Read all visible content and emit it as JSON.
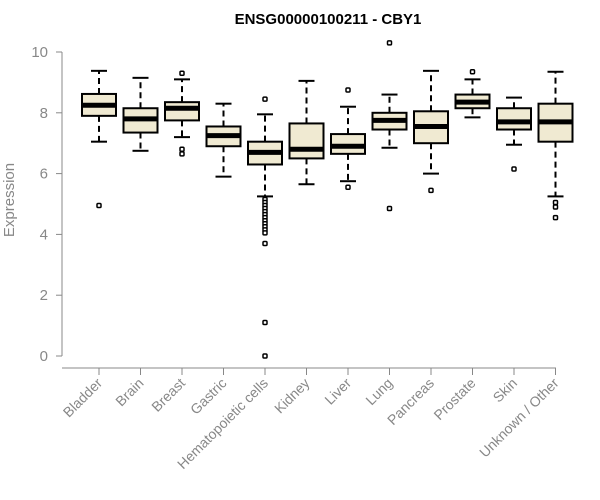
{
  "chart_data": {
    "type": "boxplot",
    "title": "ENSG00000100211 - CBY1",
    "xlabel": "",
    "ylabel": "Expression",
    "ylim": [
      0,
      10
    ],
    "yticks": [
      0,
      2,
      4,
      6,
      8,
      10
    ],
    "box_fill": "#f0ead2",
    "categories": [
      "Bladder",
      "Brain",
      "Breast",
      "Gastric",
      "Hematopoietic cells",
      "Kidney",
      "Liver",
      "Lung",
      "Pancreas",
      "Prostate",
      "Skin",
      "Unknown / Other"
    ],
    "boxes": [
      {
        "category": "Bladder",
        "whisker_low": 7.05,
        "q1": 7.9,
        "median": 8.25,
        "q3": 8.62,
        "whisker_high": 9.38,
        "outliers": [
          4.95
        ]
      },
      {
        "category": "Brain",
        "whisker_low": 6.75,
        "q1": 7.35,
        "median": 7.8,
        "q3": 8.15,
        "whisker_high": 9.15,
        "outliers": []
      },
      {
        "category": "Breast",
        "whisker_low": 7.2,
        "q1": 7.75,
        "median": 8.15,
        "q3": 8.35,
        "whisker_high": 9.1,
        "outliers": [
          9.3,
          6.8,
          6.65
        ]
      },
      {
        "category": "Gastric",
        "whisker_low": 5.9,
        "q1": 6.9,
        "median": 7.25,
        "q3": 7.55,
        "whisker_high": 8.3,
        "outliers": []
      },
      {
        "category": "Hematopoietic cells",
        "whisker_low": 5.25,
        "q1": 6.3,
        "median": 6.7,
        "q3": 7.05,
        "whisker_high": 7.95,
        "outliers": [
          8.45,
          5.15,
          5.05,
          4.95,
          4.85,
          4.75,
          4.65,
          4.55,
          4.45,
          4.35,
          4.25,
          4.15,
          4.05,
          3.7,
          1.1,
          0.0
        ]
      },
      {
        "category": "Kidney",
        "whisker_low": 5.65,
        "q1": 6.5,
        "median": 6.8,
        "q3": 7.65,
        "whisker_high": 9.05,
        "outliers": []
      },
      {
        "category": "Liver",
        "whisker_low": 5.75,
        "q1": 6.65,
        "median": 6.9,
        "q3": 7.3,
        "whisker_high": 8.2,
        "outliers": [
          8.75,
          5.55
        ]
      },
      {
        "category": "Lung",
        "whisker_low": 6.85,
        "q1": 7.45,
        "median": 7.75,
        "q3": 8.0,
        "whisker_high": 8.6,
        "outliers": [
          10.3,
          4.85
        ]
      },
      {
        "category": "Pancreas",
        "whisker_low": 6.0,
        "q1": 7.0,
        "median": 7.55,
        "q3": 8.05,
        "whisker_high": 9.38,
        "outliers": [
          5.45
        ]
      },
      {
        "category": "Prostate",
        "whisker_low": 7.85,
        "q1": 8.15,
        "median": 8.35,
        "q3": 8.6,
        "whisker_high": 9.1,
        "outliers": [
          9.35
        ]
      },
      {
        "category": "Skin",
        "whisker_low": 6.95,
        "q1": 7.45,
        "median": 7.7,
        "q3": 8.15,
        "whisker_high": 8.5,
        "outliers": [
          6.15
        ]
      },
      {
        "category": "Unknown / Other",
        "whisker_low": 5.25,
        "q1": 7.05,
        "median": 7.7,
        "q3": 8.3,
        "whisker_high": 9.35,
        "outliers": [
          5.05,
          4.9,
          4.55
        ]
      }
    ]
  }
}
